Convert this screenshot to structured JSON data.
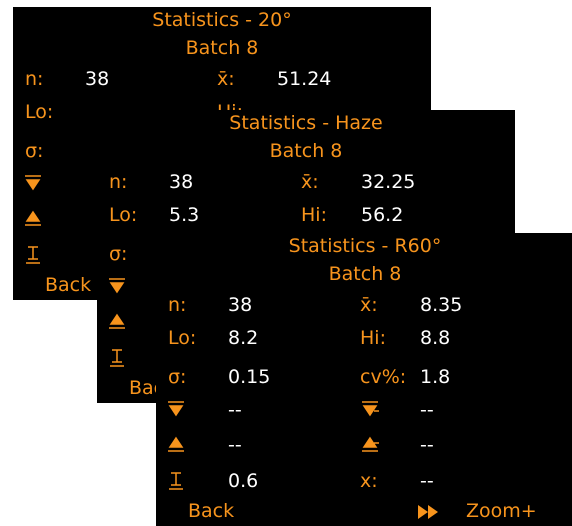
{
  "screens": [
    {
      "title": "Statistics - 20°",
      "subtitle": "Batch 8",
      "left": [
        {
          "label": "n:",
          "value": "38"
        },
        {
          "label": "Lo:"
        },
        {
          "label": "σ:"
        }
      ],
      "right": [
        {
          "label": "x̄:",
          "value": "51.24"
        },
        {
          "label": "Hi:"
        }
      ],
      "footer": {
        "left": "Back"
      }
    },
    {
      "title": "Statistics - Haze",
      "subtitle": "Batch 8",
      "left": [
        {
          "label": "n:",
          "value": "38"
        },
        {
          "label": "Lo:",
          "value": "5.3"
        },
        {
          "label": "σ:"
        }
      ],
      "right": [
        {
          "label": "x̄:",
          "value": "32.25"
        },
        {
          "label": "Hi:",
          "value": "56.2"
        }
      ],
      "footer": {
        "left": "Back"
      }
    },
    {
      "title": "Statistics - R60°",
      "subtitle": "Batch 8",
      "left": [
        {
          "label": "n:",
          "value": "38"
        },
        {
          "label": "Lo:",
          "value": "8.2"
        },
        {
          "label": "σ:",
          "value": "0.15"
        },
        {
          "value": "--"
        },
        {
          "value": "--"
        },
        {
          "value": "0.6"
        }
      ],
      "right": [
        {
          "label": "x̄:",
          "value": "8.35"
        },
        {
          "label": "Hi:",
          "value": "8.8"
        },
        {
          "label": "cv%:",
          "value": "1.8"
        },
        {
          "value": "--"
        },
        {
          "value": "--"
        },
        {
          "label": "x:",
          "value": "--"
        }
      ],
      "footer": {
        "left": "Back",
        "right": "Zoom+"
      }
    }
  ]
}
